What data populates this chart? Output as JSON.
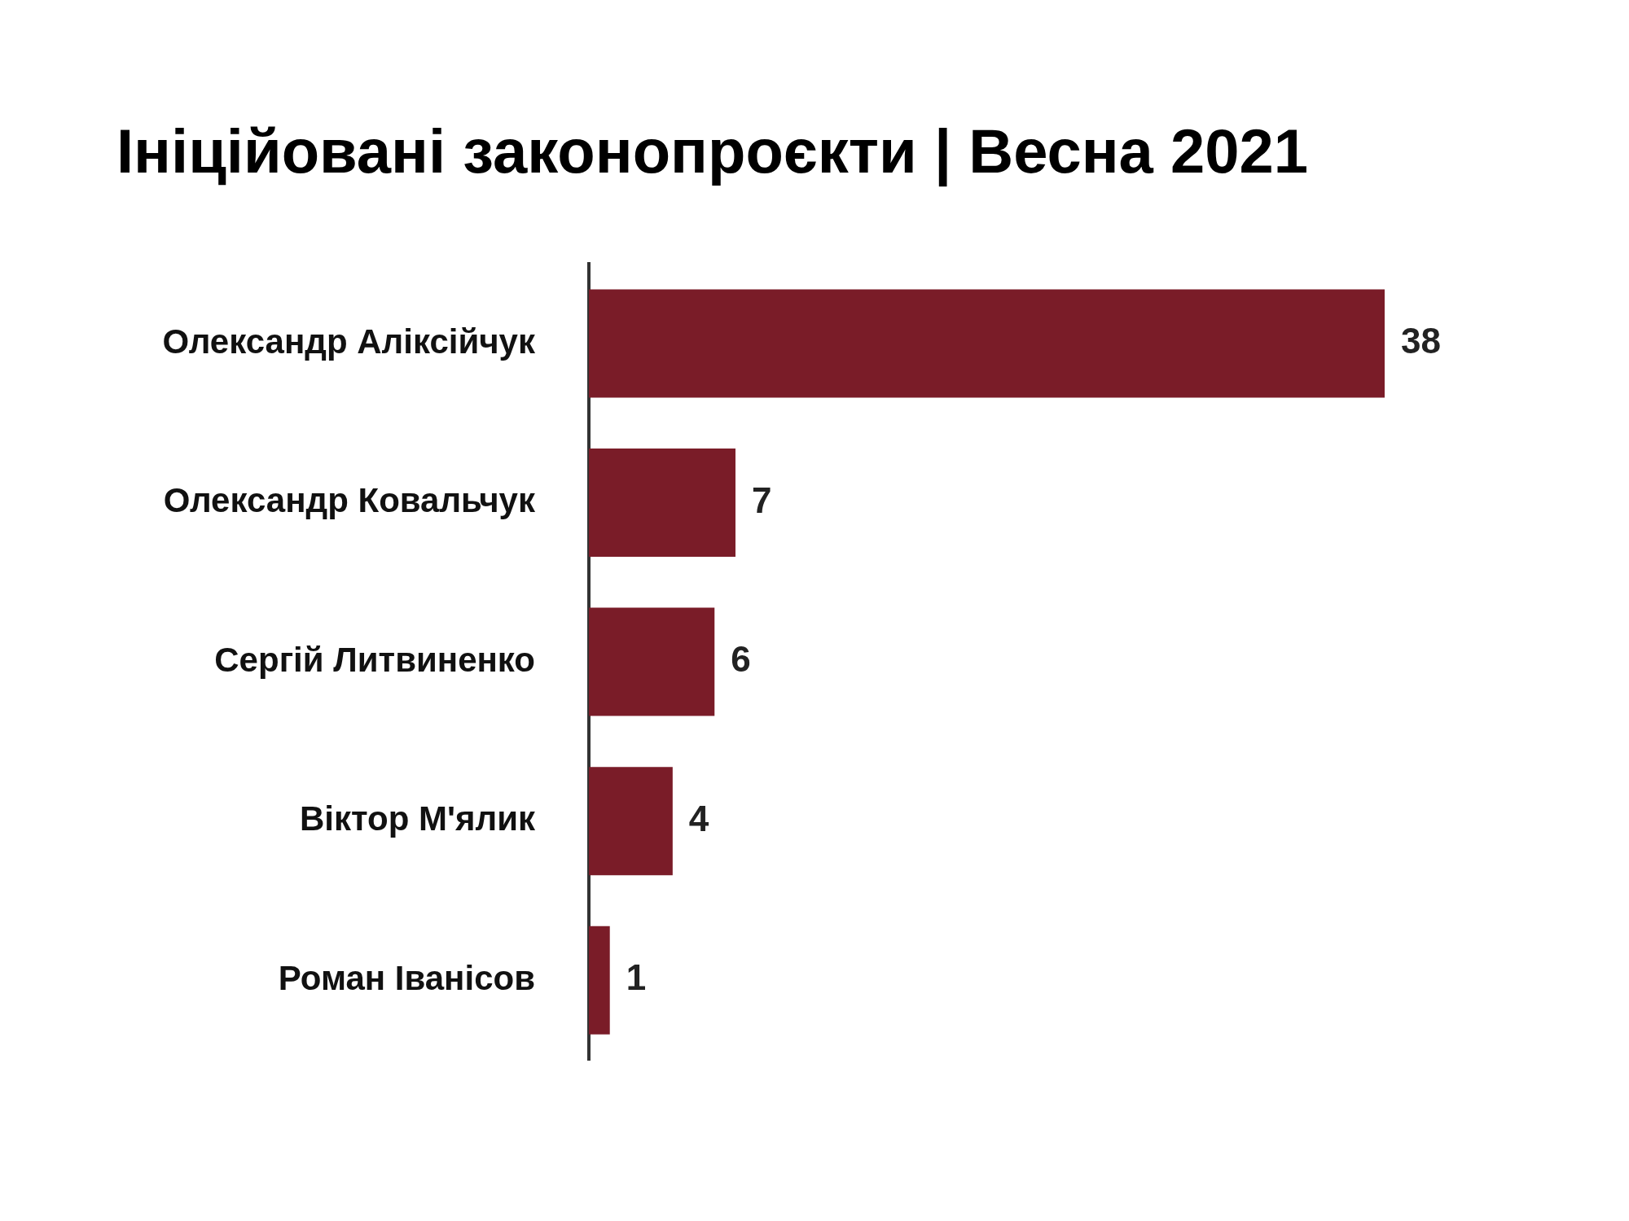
{
  "chart_data": {
    "type": "bar",
    "orientation": "horizontal",
    "title": "Ініційовані законопроєкти | Весна 2021",
    "categories": [
      "Олександр Аліксійчук",
      "Олександр Ковальчук",
      "Сергій Литвиненко",
      "Віктор М'ялик",
      "Роман Іванісов"
    ],
    "values": [
      38,
      7,
      6,
      4,
      1
    ],
    "color": "#7a1c28",
    "data_labels": true
  }
}
